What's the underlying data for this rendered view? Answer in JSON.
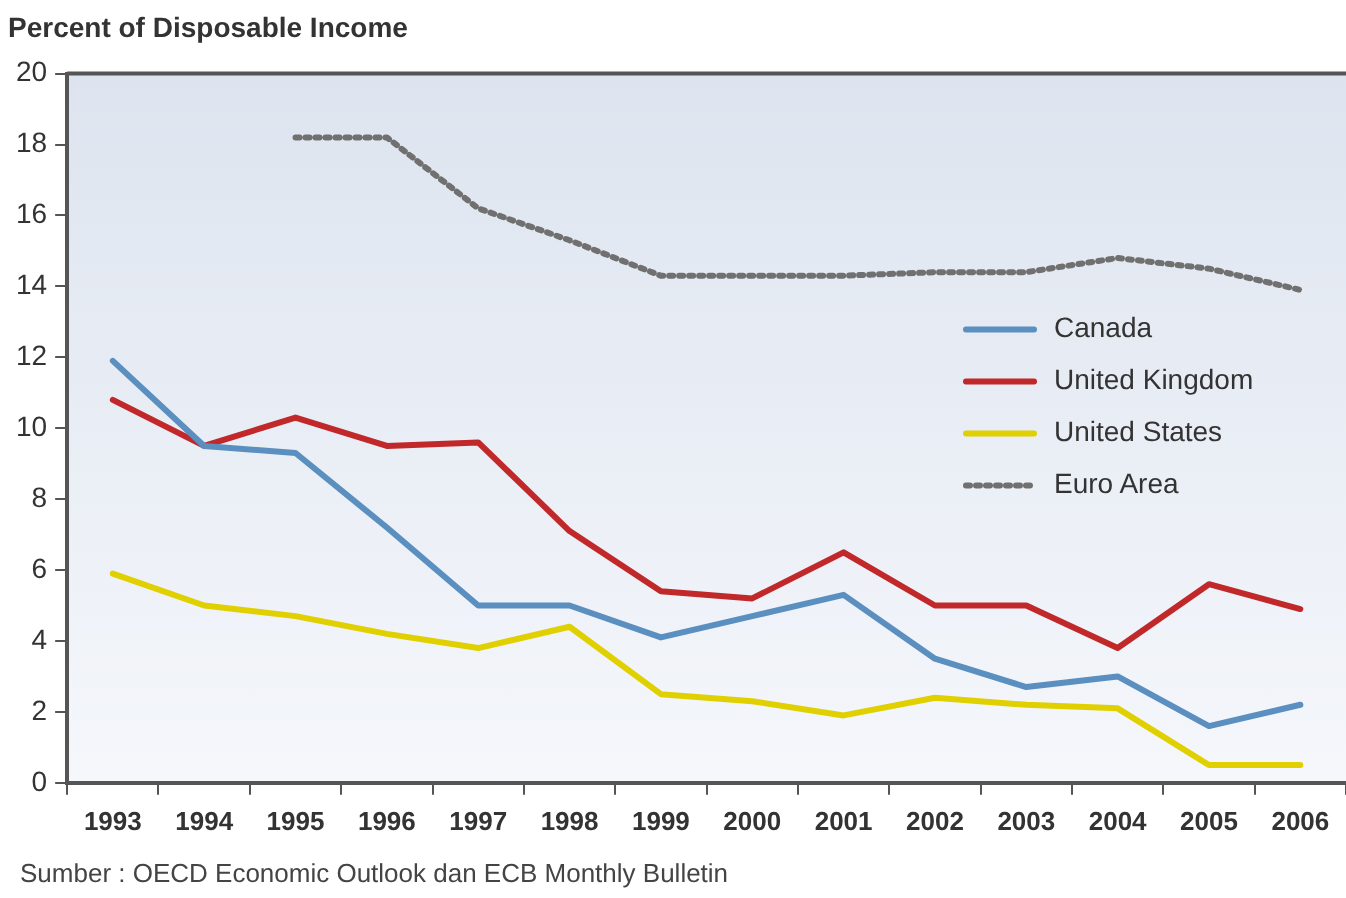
{
  "chart_data": {
    "type": "line",
    "title": "Percent of Disposable Income",
    "categories": [
      "1993",
      "1994",
      "1995",
      "1996",
      "1997",
      "1998",
      "1999",
      "2000",
      "2001",
      "2002",
      "2003",
      "2004",
      "2005",
      "2006"
    ],
    "series": [
      {
        "name": "Canada",
        "color": "#5b8fc0",
        "values": [
          11.9,
          9.5,
          9.3,
          7.2,
          5.0,
          5.0,
          4.1,
          4.7,
          5.3,
          3.5,
          2.7,
          3.0,
          1.6,
          2.2
        ]
      },
      {
        "name": "United Kingdom",
        "color": "#c0282a",
        "values": [
          10.8,
          9.5,
          10.3,
          9.5,
          9.6,
          7.1,
          5.4,
          5.2,
          6.5,
          5.0,
          5.0,
          3.8,
          5.6,
          4.9
        ]
      },
      {
        "name": "United States",
        "color": "#e0d000",
        "values": [
          5.9,
          5.0,
          4.7,
          4.2,
          3.8,
          4.4,
          2.5,
          2.3,
          1.9,
          2.4,
          2.2,
          2.1,
          0.5,
          0.5
        ]
      },
      {
        "name": "Euro Area",
        "color": "#707070",
        "line_style": "dotted",
        "values": [
          null,
          null,
          18.2,
          18.2,
          16.2,
          15.3,
          14.3,
          14.3,
          14.3,
          14.4,
          14.4,
          14.8,
          14.5,
          13.9
        ]
      }
    ],
    "ylim": [
      0,
      20
    ],
    "yticks": [
      0,
      2,
      4,
      6,
      8,
      10,
      12,
      14,
      16,
      18,
      20
    ],
    "grid": false,
    "legend": "right",
    "marker": "none",
    "annotations": [
      "Sumber : OECD Economic Outlook dan ECB Monthly Bulletin"
    ]
  }
}
